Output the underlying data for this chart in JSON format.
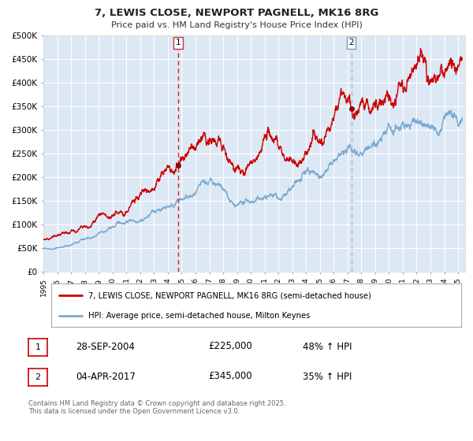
{
  "title": "7, LEWIS CLOSE, NEWPORT PAGNELL, MK16 8RG",
  "subtitle": "Price paid vs. HM Land Registry's House Price Index (HPI)",
  "background_color": "#ffffff",
  "plot_bg_color": "#dde8f5",
  "grid_color": "#ffffff",
  "red_line_color": "#cc0000",
  "blue_line_color": "#7aaad0",
  "marker_color": "#990000",
  "vline1_color": "#cc0000",
  "vline2_color": "#8899bb",
  "vline1_x": 2004.75,
  "vline2_x": 2017.27,
  "marker1_x": 2004.75,
  "marker1_y": 225000,
  "marker2_x": 2017.27,
  "marker2_y": 345000,
  "ylim": [
    0,
    500000
  ],
  "xlim": [
    1995,
    2025.5
  ],
  "yticks": [
    0,
    50000,
    100000,
    150000,
    200000,
    250000,
    300000,
    350000,
    400000,
    450000,
    500000
  ],
  "ytick_labels": [
    "£0",
    "£50K",
    "£100K",
    "£150K",
    "£200K",
    "£250K",
    "£300K",
    "£350K",
    "£400K",
    "£450K",
    "£500K"
  ],
  "xticks": [
    1995,
    1996,
    1997,
    1998,
    1999,
    2000,
    2001,
    2002,
    2003,
    2004,
    2005,
    2006,
    2007,
    2008,
    2009,
    2010,
    2011,
    2012,
    2013,
    2014,
    2015,
    2016,
    2017,
    2018,
    2019,
    2020,
    2021,
    2022,
    2023,
    2024,
    2025
  ],
  "xtick_labels": [
    "1995",
    "1996",
    "1997",
    "1998",
    "1999",
    "2000",
    "2001",
    "2002",
    "2003",
    "2004",
    "2005",
    "2006",
    "2007",
    "2008",
    "2009",
    "2010",
    "2011",
    "2012",
    "2013",
    "2014",
    "2015",
    "2016",
    "2017",
    "2018",
    "2019",
    "2020",
    "2021",
    "2022",
    "2023",
    "2024",
    "2025"
  ],
  "legend_label_red": "7, LEWIS CLOSE, NEWPORT PAGNELL, MK16 8RG (semi-detached house)",
  "legend_label_blue": "HPI: Average price, semi-detached house, Milton Keynes",
  "note1_label": "1",
  "note1_date": "28-SEP-2004",
  "note1_price": "£225,000",
  "note1_change": "48% ↑ HPI",
  "note2_label": "2",
  "note2_date": "04-APR-2017",
  "note2_price": "£345,000",
  "note2_change": "35% ↑ HPI",
  "footer": "Contains HM Land Registry data © Crown copyright and database right 2025.\nThis data is licensed under the Open Government Licence v3.0."
}
